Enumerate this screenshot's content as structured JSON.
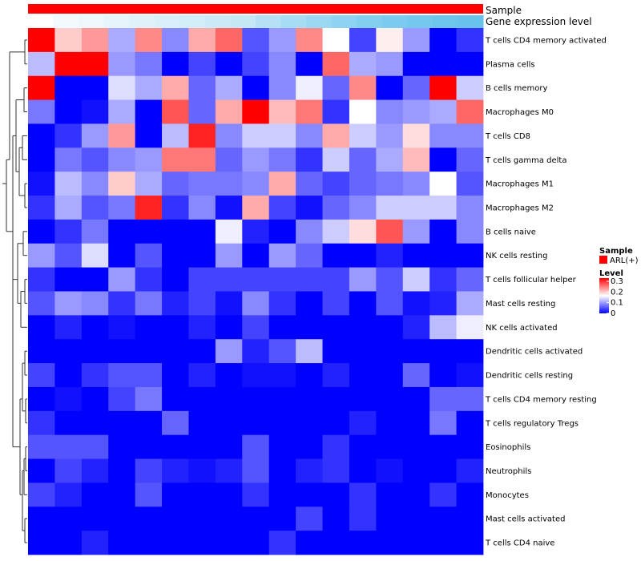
{
  "chart_data": {
    "type": "heatmap",
    "title": "",
    "annotation_rows": [
      {
        "label": "Sample",
        "color": "#ff0000"
      },
      {
        "label": "Gene expression level",
        "colors": [
          "#ffffff",
          "#f2fafd",
          "#ecf8fc",
          "#e5f5fb",
          "#dff2fa",
          "#d8f0f9",
          "#d1edf8",
          "#cbeaf7",
          "#c4e8f6",
          "#b4e2f4",
          "#a7ddf3",
          "#9ad8f2",
          "#8ed3f1",
          "#82cff0",
          "#7acbef",
          "#74c8ee",
          "#6ec5ec",
          "#69c2eb"
        ]
      },
      {
        "label": "",
        "colors": [
          "#ffffff",
          "#f2fafd",
          "#ecf8fc",
          "#e5f5fb",
          "#dff2fa",
          "#d8f0f9",
          "#d1edf8",
          "#cbeaf7",
          "#c4e8f6",
          "#b4e2f4",
          "#a7ddf3",
          "#9ad8f2",
          "#8ed3f1",
          "#82cff0",
          "#7acbef",
          "#74c8ee",
          "#6ec5ec",
          "#69c2eb"
        ]
      }
    ],
    "row_labels": [
      "T cells CD4 memory activated",
      "Plasma cells",
      "B cells memory",
      "Macrophages M0",
      "T cells CD8",
      "T cells gamma delta",
      "Macrophages M1",
      "Macrophages M2",
      "B cells naive",
      "NK cells resting",
      "T cells follicular helper",
      "Mast cells resting",
      "NK cells activated",
      "Dendritic cells activated",
      "Dendritic cells resting",
      "T cells CD4 memory resting",
      "T cells regulatory  Tregs",
      "Eosinophils",
      "Neutrophils",
      "Monocytes",
      "Mast cells activated",
      "T cells CD4 naive"
    ],
    "n_columns": 17,
    "values": [
      [
        0.3,
        0.18,
        0.21,
        0.1,
        0.22,
        0.08,
        0.2,
        0.24,
        0.05,
        0.09,
        0.22,
        0.15,
        0.04,
        0.16,
        0.09,
        0.0,
        0.03
      ],
      [
        0.11,
        0.3,
        0.3,
        0.09,
        0.07,
        0.0,
        0.04,
        0.0,
        0.04,
        0.08,
        0.0,
        0.24,
        0.1,
        0.09,
        0.0,
        0.0,
        0.0
      ],
      [
        0.3,
        0.0,
        0.0,
        0.13,
        0.1,
        0.2,
        0.06,
        0.1,
        0.0,
        0.08,
        0.14,
        0.06,
        0.22,
        0.0,
        0.06,
        0.3,
        0.12
      ],
      [
        0.07,
        0.0,
        0.01,
        0.1,
        0.0,
        0.25,
        0.06,
        0.2,
        0.3,
        0.19,
        0.23,
        0.03,
        0.15,
        0.08,
        0.09,
        0.1,
        0.24
      ],
      [
        0.0,
        0.03,
        0.09,
        0.21,
        0.0,
        0.11,
        0.28,
        0.08,
        0.12,
        0.12,
        0.08,
        0.2,
        0.12,
        0.09,
        0.17,
        0.08,
        0.08
      ],
      [
        0.0,
        0.07,
        0.05,
        0.08,
        0.09,
        0.23,
        0.23,
        0.06,
        0.09,
        0.07,
        0.03,
        0.12,
        0.06,
        0.1,
        0.19,
        0.0,
        0.06
      ],
      [
        0.01,
        0.11,
        0.08,
        0.18,
        0.1,
        0.06,
        0.07,
        0.07,
        0.08,
        0.2,
        0.06,
        0.04,
        0.06,
        0.07,
        0.08,
        0.15,
        0.05
      ],
      [
        0.03,
        0.1,
        0.05,
        0.07,
        0.28,
        0.03,
        0.08,
        0.01,
        0.2,
        0.04,
        0.01,
        0.06,
        0.08,
        0.12,
        0.12,
        0.12,
        0.08
      ],
      [
        0.0,
        0.03,
        0.07,
        0.0,
        0.0,
        0.0,
        0.0,
        0.14,
        0.02,
        0.0,
        0.08,
        0.12,
        0.17,
        0.25,
        0.09,
        0.0,
        0.08
      ],
      [
        0.09,
        0.05,
        0.13,
        0.0,
        0.05,
        0.0,
        0.0,
        0.09,
        0.0,
        0.09,
        0.06,
        0.0,
        0.0,
        0.02,
        0.0,
        0.0,
        0.0
      ],
      [
        0.03,
        0.0,
        0.0,
        0.09,
        0.03,
        0.0,
        0.04,
        0.04,
        0.04,
        0.04,
        0.04,
        0.04,
        0.09,
        0.05,
        0.12,
        0.03,
        0.06
      ],
      [
        0.05,
        0.09,
        0.08,
        0.03,
        0.07,
        0.02,
        0.04,
        0.01,
        0.08,
        0.03,
        0.0,
        0.04,
        0.0,
        0.05,
        0.01,
        0.02,
        0.1
      ],
      [
        0.0,
        0.02,
        0.0,
        0.01,
        0.0,
        0.0,
        0.02,
        0.0,
        0.04,
        0.0,
        0.0,
        0.0,
        0.0,
        0.0,
        0.02,
        0.11,
        0.14
      ],
      [
        0.0,
        0.0,
        0.0,
        0.0,
        0.0,
        0.0,
        0.0,
        0.09,
        0.02,
        0.05,
        0.11,
        0.0,
        0.0,
        0.0,
        0.0,
        0.0,
        0.0
      ],
      [
        0.04,
        0.0,
        0.03,
        0.05,
        0.05,
        0.0,
        0.02,
        0.0,
        0.01,
        0.01,
        0.0,
        0.02,
        0.0,
        0.0,
        0.06,
        0.0,
        0.01
      ],
      [
        0.0,
        0.01,
        0.0,
        0.04,
        0.07,
        0.0,
        0.0,
        0.0,
        0.0,
        0.0,
        0.0,
        0.0,
        0.0,
        0.0,
        0.0,
        0.06,
        0.06
      ],
      [
        0.03,
        0.0,
        0.0,
        0.0,
        0.0,
        0.06,
        0.0,
        0.0,
        0.0,
        0.0,
        0.0,
        0.0,
        0.02,
        0.0,
        0.0,
        0.07,
        0.0
      ],
      [
        0.05,
        0.05,
        0.05,
        0.0,
        0.0,
        0.0,
        0.0,
        0.0,
        0.05,
        0.0,
        0.0,
        0.03,
        0.0,
        0.0,
        0.0,
        0.0,
        0.0
      ],
      [
        0.0,
        0.04,
        0.02,
        0.0,
        0.04,
        0.02,
        0.01,
        0.02,
        0.05,
        0.0,
        0.02,
        0.03,
        0.0,
        0.01,
        0.0,
        0.0,
        0.02
      ],
      [
        0.04,
        0.02,
        0.0,
        0.0,
        0.05,
        0.0,
        0.0,
        0.0,
        0.03,
        0.0,
        0.0,
        0.0,
        0.03,
        0.0,
        0.0,
        0.03,
        0.0
      ],
      [
        0.0,
        0.0,
        0.0,
        0.0,
        0.0,
        0.0,
        0.0,
        0.0,
        0.0,
        0.0,
        0.04,
        0.0,
        0.03,
        0.0,
        0.0,
        0.0,
        0.0
      ],
      [
        0.0,
        0.0,
        0.02,
        0.0,
        0.0,
        0.0,
        0.0,
        0.0,
        0.0,
        0.03,
        0.0,
        0.0,
        0.0,
        0.0,
        0.0,
        0.0,
        0.0
      ]
    ],
    "color_scale": {
      "low": "#0000ff",
      "mid": "#ffffff",
      "high": "#ff0000",
      "min": 0,
      "max": 0.3
    },
    "legend": {
      "placement": "right",
      "sample": {
        "title": "Sample",
        "entries": [
          {
            "label": "ARL(+)",
            "color": "#ff0000"
          }
        ]
      },
      "level": {
        "title": "Level",
        "ticks": [
          "0.3",
          "0.2",
          "0.1",
          "0"
        ]
      }
    },
    "row_dendrogram": true
  }
}
